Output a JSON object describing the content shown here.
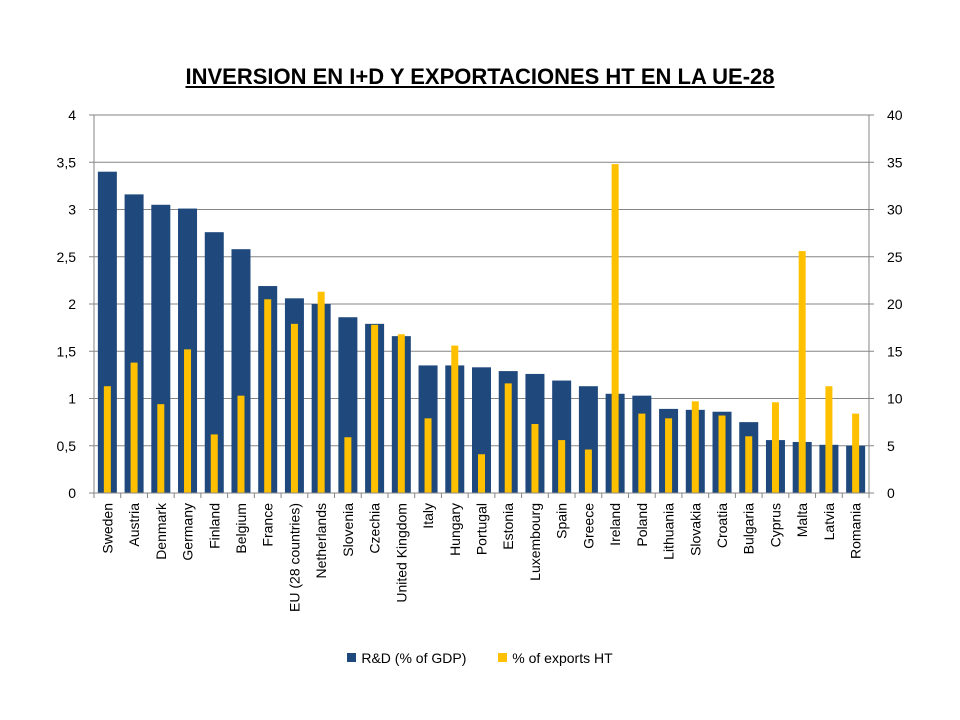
{
  "chart_data": {
    "type": "bar",
    "title": "INVERSION EN I+D Y EXPORTACIONES HT EN LA UE-28",
    "categories": [
      "Sweden",
      "Austria",
      "Denmark",
      "Germany",
      "Finland",
      "Belgium",
      "France",
      "EU (28 countries)",
      "Netherlands",
      "Slovenia",
      "Czechia",
      "United Kingdom",
      "Italy",
      "Hungary",
      "Portugal",
      "Estonia",
      "Luxembourg",
      "Spain",
      "Greece",
      "Ireland",
      "Poland",
      "Lithuania",
      "Slovakia",
      "Croatia",
      "Bulgaria",
      "Cyprus",
      "Malta",
      "Latvia",
      "Romania"
    ],
    "series": [
      {
        "name": "R&D (% of GDP)",
        "axis": "left",
        "color": "#1f497d",
        "values": [
          3.4,
          3.16,
          3.05,
          3.01,
          2.76,
          2.58,
          2.19,
          2.06,
          2.0,
          1.86,
          1.79,
          1.66,
          1.35,
          1.35,
          1.33,
          1.29,
          1.26,
          1.19,
          1.13,
          1.05,
          1.03,
          0.89,
          0.88,
          0.86,
          0.75,
          0.56,
          0.54,
          0.51,
          0.5
        ]
      },
      {
        "name": "% of exports HT",
        "axis": "right",
        "color": "#ffc000",
        "values": [
          11.3,
          13.8,
          9.4,
          15.2,
          6.2,
          10.3,
          20.5,
          17.9,
          21.3,
          5.9,
          17.8,
          16.8,
          7.9,
          15.6,
          4.1,
          11.6,
          7.3,
          5.6,
          4.6,
          34.8,
          8.4,
          7.9,
          9.7,
          8.2,
          6.0,
          9.6,
          25.6,
          11.3,
          8.4
        ]
      }
    ],
    "y_left": {
      "ylim": [
        0,
        4
      ],
      "ticks": [
        "0",
        "0,5",
        "1",
        "1,5",
        "2",
        "2,5",
        "3",
        "3,5",
        "4"
      ]
    },
    "y_right": {
      "ylim": [
        0,
        40
      ],
      "ticks": [
        "0",
        "5",
        "10",
        "15",
        "20",
        "25",
        "30",
        "35",
        "40"
      ]
    },
    "grid": true,
    "legend_position": "bottom"
  }
}
